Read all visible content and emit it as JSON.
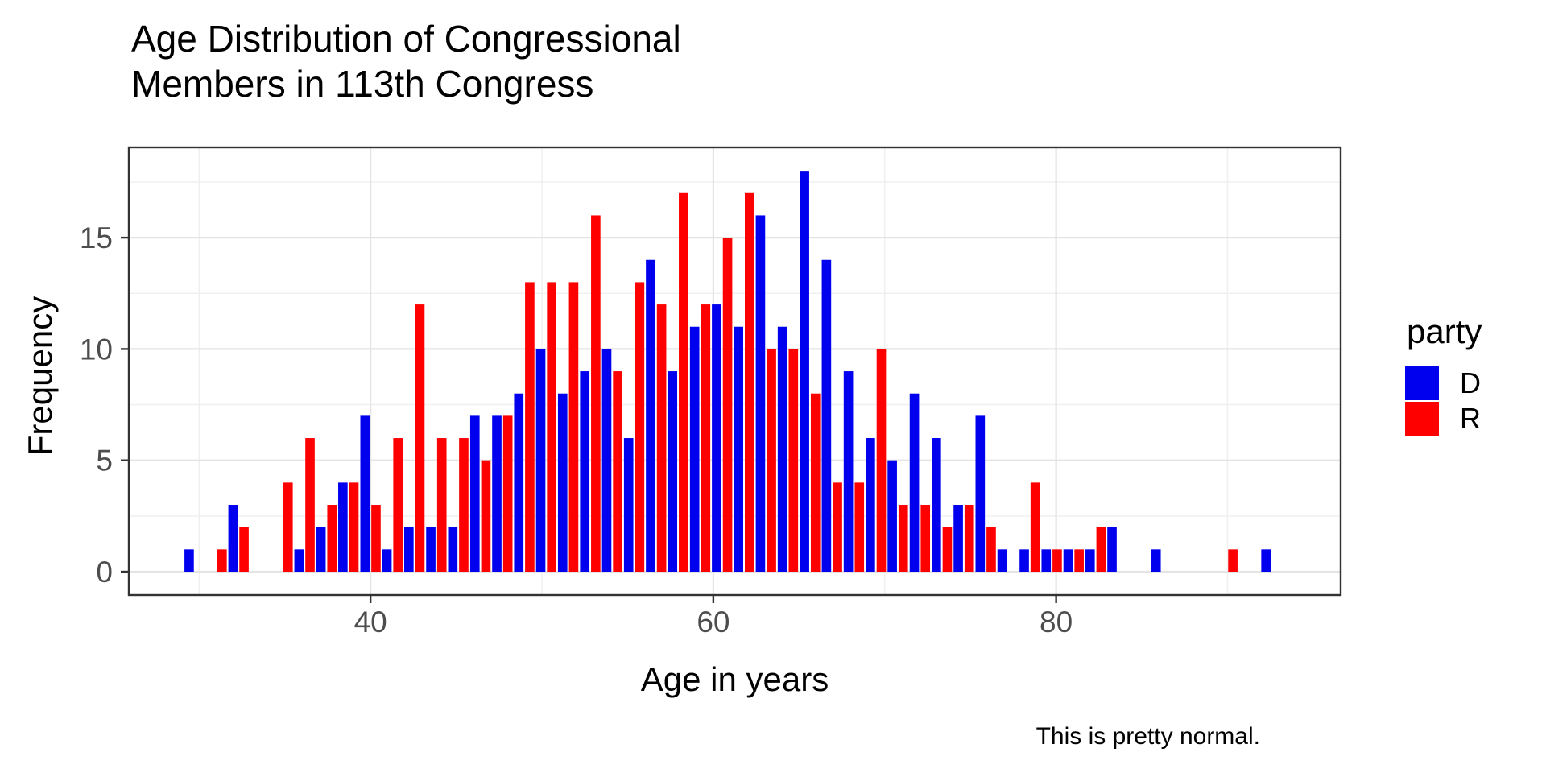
{
  "title": {
    "text": "Age Distribution of Congressional\nMembers in 113th Congress"
  },
  "caption": "This is pretty normal.",
  "axes": {
    "x_label": "Age in years",
    "y_label": "Frequency",
    "x_major_ticks": [
      40,
      60,
      80
    ],
    "x_minor_ticks": [
      30,
      50,
      70,
      90
    ],
    "y_major_ticks": [
      0,
      5,
      10,
      15
    ],
    "y_minor_ticks": [
      2.5,
      7.5,
      12.5,
      17.5
    ]
  },
  "legend": {
    "title": "party",
    "items": [
      {
        "label": "D",
        "color": "#0000ee"
      },
      {
        "label": "R",
        "color": "#ff0000"
      }
    ]
  },
  "colors": {
    "democrat": "#0000ee",
    "republican": "#ff0000",
    "panel_border": "#333333",
    "tick_text": "#4d4d4d",
    "grid_major": "#e4e4e4",
    "grid_minor": "#f0f0f0"
  },
  "chart_data": {
    "type": "bar",
    "subtype": "dodged-histogram",
    "title": "Age Distribution of Congressional Members in 113th Congress",
    "xlabel": "Age in years",
    "ylabel": "Frequency",
    "xlim": [
      25.9,
      96.6
    ],
    "ylim": [
      0,
      18.6
    ],
    "grid": true,
    "legend_position": "right",
    "binwidth": 1.282,
    "bin_centers": [
      29.74,
      31.02,
      32.3,
      33.59,
      34.87,
      36.15,
      37.43,
      38.71,
      40.0,
      41.28,
      42.56,
      43.84,
      45.12,
      46.41,
      47.69,
      48.97,
      50.25,
      51.53,
      52.82,
      54.1,
      55.38,
      56.66,
      57.94,
      59.23,
      60.51,
      61.79,
      63.07,
      64.35,
      65.64,
      66.92,
      68.2,
      69.48,
      70.76,
      72.05,
      73.33,
      74.61,
      75.89,
      77.17,
      78.46,
      79.74,
      81.02,
      82.3,
      83.58,
      84.87,
      86.15,
      87.43,
      88.71,
      89.99,
      91.28,
      92.56
    ],
    "series": [
      {
        "name": "D",
        "color": "#0000ee",
        "values": [
          1,
          0,
          3,
          0,
          0,
          1,
          2,
          4,
          7,
          1,
          2,
          2,
          2,
          7,
          7,
          8,
          10,
          8,
          9,
          10,
          6,
          14,
          9,
          11,
          12,
          11,
          16,
          11,
          18,
          14,
          9,
          6,
          5,
          8,
          6,
          3,
          7,
          1,
          1,
          1,
          1,
          1,
          2,
          0,
          1,
          0,
          0,
          0,
          0,
          1
        ]
      },
      {
        "name": "R",
        "color": "#ff0000",
        "values": [
          0,
          1,
          2,
          0,
          4,
          6,
          3,
          4,
          3,
          6,
          12,
          6,
          6,
          5,
          7,
          13,
          13,
          13,
          16,
          9,
          13,
          12,
          17,
          12,
          15,
          17,
          10,
          10,
          8,
          4,
          4,
          10,
          3,
          3,
          2,
          3,
          2,
          0,
          4,
          1,
          1,
          2,
          0,
          0,
          0,
          0,
          0,
          1,
          0,
          0
        ]
      }
    ]
  }
}
